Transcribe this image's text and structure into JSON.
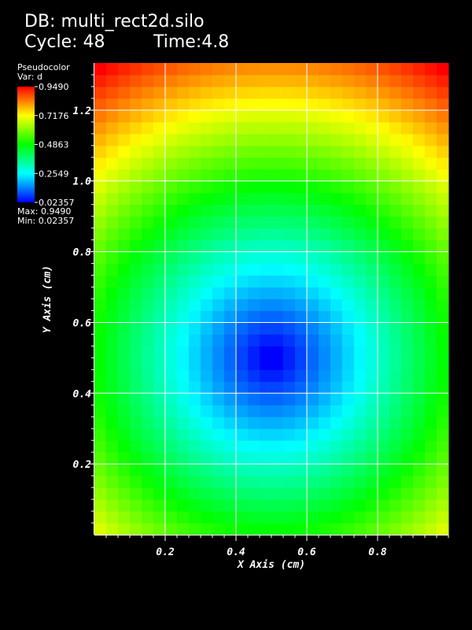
{
  "header": {
    "db_label": "DB: multi_rect2d.silo",
    "cycle_label": "Cycle: 48",
    "time_label": "Time:4.8"
  },
  "legend": {
    "plot_type": "Pseudocolor",
    "var_label": "Var: d",
    "tick_labels": [
      "0.9490",
      "0.7176",
      "0.4863",
      "0.2549",
      "0.02357"
    ],
    "max_label": "Max: 0.9490",
    "min_label": "Min: 0.02357",
    "colormap": [
      "#0000ff",
      "#00ffff",
      "#00ff00",
      "#ffff00",
      "#ff0000"
    ]
  },
  "chart_data": {
    "type": "heatmap",
    "variable": "d",
    "xlabel": "X Axis (cm)",
    "ylabel": "Y Axis (cm)",
    "xlim": [
      0,
      1
    ],
    "ylim": [
      0,
      1.3333
    ],
    "x_ticks": [
      0.2,
      0.4,
      0.6,
      0.8
    ],
    "x_tick_labels": [
      "0.2",
      "0.4",
      "0.6",
      "0.8"
    ],
    "y_ticks": [
      0.2,
      0.4,
      0.6,
      0.8,
      1.0,
      1.2
    ],
    "y_tick_labels": [
      "0.2",
      "0.4",
      "0.6",
      "0.8",
      "1.0",
      "1.2"
    ],
    "grid": true,
    "cells_x": 30,
    "cells_y": 40,
    "field": "distance from (0.5, 0.5)",
    "min": 0.02357,
    "max": 0.949
  }
}
